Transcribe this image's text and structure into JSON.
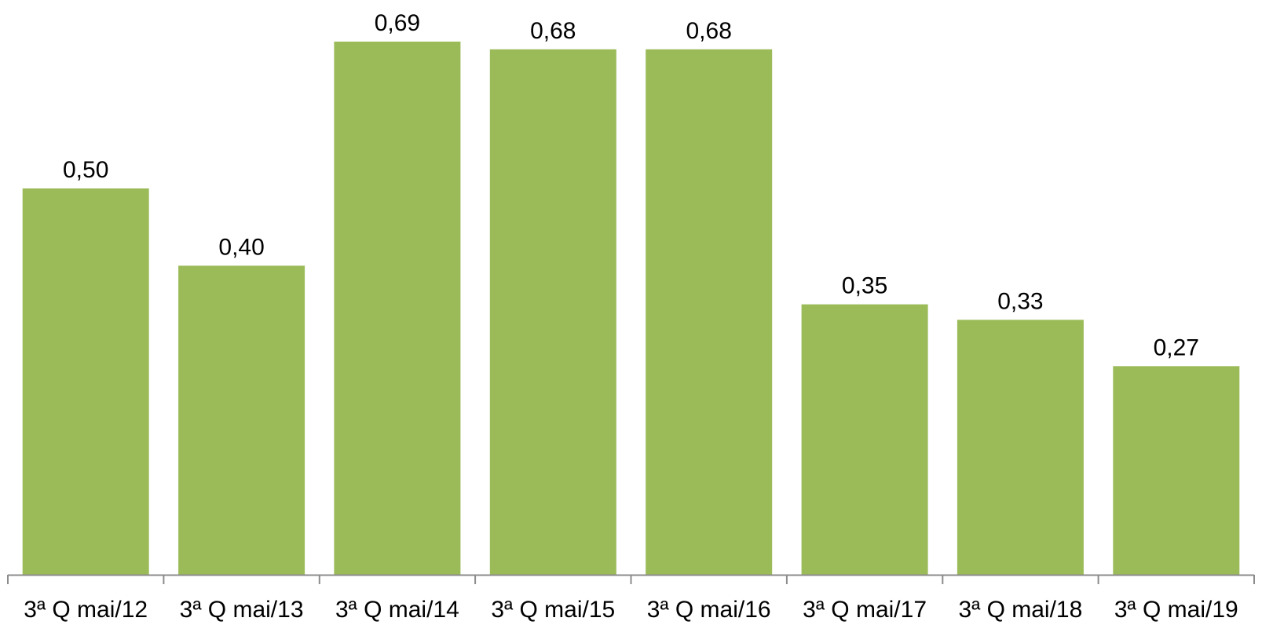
{
  "chart_data": {
    "type": "bar",
    "title": "",
    "xlabel": "",
    "ylabel": "",
    "categories": [
      "3ª Q mai/12",
      "3ª Q mai/13",
      "3ª Q mai/14",
      "3ª Q mai/15",
      "3ª Q mai/16",
      "3ª Q mai/17",
      "3ª Q mai/18",
      "3ª Q mai/19"
    ],
    "values": [
      0.5,
      0.4,
      0.69,
      0.68,
      0.68,
      0.35,
      0.33,
      0.27
    ],
    "value_labels": [
      "0,50",
      "0,40",
      "0,69",
      "0,68",
      "0,68",
      "0,35",
      "0,33",
      "0,27"
    ],
    "ylim": [
      0,
      0.69
    ],
    "grid": false,
    "legend": "none",
    "colors": {
      "bar": "#9BBB59",
      "axis": "#8C8C8C"
    }
  }
}
